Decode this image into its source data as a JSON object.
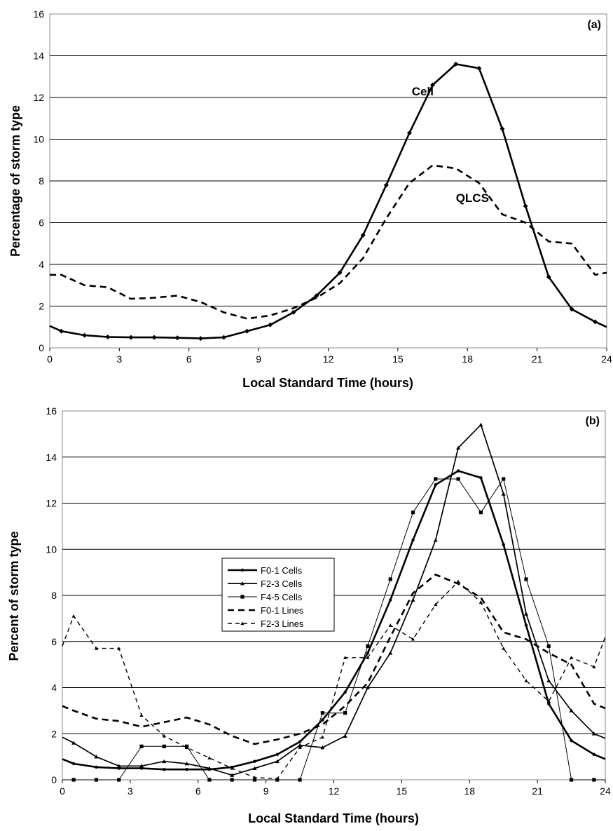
{
  "chart_data": [
    {
      "type": "line",
      "panel_label": "(a)",
      "title": "",
      "xlabel": "Local Standard Time (hours)",
      "ylabel": "Percentage of storm type",
      "xlim": [
        0,
        24
      ],
      "ylim": [
        0,
        16
      ],
      "xticks": [
        0,
        3,
        6,
        9,
        12,
        15,
        18,
        21,
        24
      ],
      "yticks": [
        0,
        2,
        4,
        6,
        8,
        10,
        12,
        14,
        16
      ],
      "grid": "horizontal",
      "legend": "none",
      "annotations": [
        {
          "text": "Cell",
          "x": 15.6,
          "y": 12.1
        },
        {
          "text": "QLCS",
          "x": 17.5,
          "y": 7.0
        }
      ],
      "series": [
        {
          "name": "Cell",
          "style": "solid-diamond",
          "x": [
            0,
            0.5,
            1.5,
            2.5,
            3.5,
            4.5,
            5.5,
            6.5,
            7.5,
            8.5,
            9.5,
            10.5,
            11.5,
            12.5,
            13.5,
            14.5,
            15.5,
            16.5,
            17.5,
            18.5,
            19.5,
            20.5,
            21.5,
            22.5,
            23.5,
            24
          ],
          "y": [
            1.05,
            0.8,
            0.6,
            0.52,
            0.5,
            0.5,
            0.48,
            0.45,
            0.5,
            0.8,
            1.1,
            1.7,
            2.5,
            3.6,
            5.4,
            7.8,
            10.3,
            12.6,
            13.6,
            13.4,
            10.5,
            6.8,
            3.4,
            1.85,
            1.25,
            1.0
          ]
        },
        {
          "name": "QLCS",
          "style": "dashed",
          "x": [
            0,
            0.5,
            1.5,
            2.5,
            3.5,
            4.5,
            5.5,
            6.5,
            7.5,
            8.5,
            9.5,
            10.5,
            11.5,
            12.5,
            13.5,
            14.5,
            15.5,
            16.5,
            17.5,
            18.5,
            19.5,
            20.5,
            21.5,
            22.5,
            23.5,
            24
          ],
          "y": [
            3.5,
            3.5,
            3.0,
            2.9,
            2.35,
            2.4,
            2.5,
            2.2,
            1.7,
            1.4,
            1.55,
            1.9,
            2.4,
            3.1,
            4.3,
            6.2,
            7.9,
            8.75,
            8.6,
            7.9,
            6.4,
            6.0,
            5.1,
            5.0,
            3.5,
            3.6
          ]
        }
      ]
    },
    {
      "type": "line",
      "panel_label": "(b)",
      "title": "",
      "xlabel": "Local Standard Time (hours)",
      "ylabel": "Percent of storm type",
      "xlim": [
        0,
        24
      ],
      "ylim": [
        0,
        16
      ],
      "xticks": [
        0,
        3,
        6,
        9,
        12,
        15,
        18,
        21,
        24
      ],
      "yticks": [
        0,
        2,
        4,
        6,
        8,
        10,
        12,
        14,
        16
      ],
      "grid": "horizontal",
      "legend": "center-left",
      "series": [
        {
          "name": "F0-1 Cells",
          "style": "solid-thick-dot",
          "x": [
            0,
            0.5,
            1.5,
            2.5,
            3.5,
            4.5,
            5.5,
            6.5,
            7.5,
            8.5,
            9.5,
            10.5,
            11.5,
            12.5,
            13.5,
            14.5,
            15.5,
            16.5,
            17.5,
            18.5,
            19.5,
            20.5,
            21.5,
            22.5,
            23.5,
            24
          ],
          "y": [
            0.9,
            0.7,
            0.55,
            0.5,
            0.5,
            0.45,
            0.45,
            0.45,
            0.55,
            0.8,
            1.1,
            1.65,
            2.6,
            3.8,
            5.5,
            7.8,
            10.4,
            12.8,
            13.4,
            13.1,
            10.2,
            6.7,
            3.3,
            1.7,
            1.1,
            0.9
          ]
        },
        {
          "name": "F2-3 Cells",
          "style": "solid-triangle",
          "x": [
            0,
            0.5,
            1.5,
            2.5,
            3.5,
            4.5,
            5.5,
            6.5,
            7.5,
            8.5,
            9.5,
            10.5,
            11.5,
            12.5,
            13.5,
            14.5,
            15.5,
            16.5,
            17.5,
            18.5,
            19.5,
            20.5,
            21.5,
            22.5,
            23.5,
            24
          ],
          "y": [
            1.85,
            1.6,
            1.0,
            0.6,
            0.6,
            0.8,
            0.7,
            0.5,
            0.2,
            0.5,
            0.8,
            1.5,
            1.4,
            1.9,
            4.0,
            5.5,
            7.8,
            10.4,
            14.4,
            15.4,
            12.4,
            7.2,
            4.3,
            3.0,
            2.0,
            1.8
          ]
        },
        {
          "name": "F4-5 Cells",
          "style": "solid-thin-square",
          "x": [
            0,
            0.5,
            1.5,
            2.5,
            3.5,
            4.5,
            5.5,
            6.5,
            7.5,
            8.5,
            9.5,
            10.5,
            11.5,
            12.5,
            13.5,
            14.5,
            15.5,
            16.5,
            17.5,
            18.5,
            19.5,
            20.5,
            21.5,
            22.5,
            23.5,
            24
          ],
          "y": [
            0,
            0,
            0,
            0,
            1.45,
            1.45,
            1.45,
            0,
            0,
            0,
            0,
            0,
            2.9,
            2.9,
            5.8,
            8.7,
            11.6,
            13.05,
            13.05,
            11.6,
            13.05,
            8.7,
            5.8,
            0,
            0,
            0
          ]
        },
        {
          "name": "F0-1 Lines",
          "style": "dashed-thick",
          "x": [
            0,
            0.5,
            1.5,
            2.5,
            3.5,
            4.5,
            5.5,
            6.5,
            7.5,
            8.5,
            9.5,
            10.5,
            11.5,
            12.5,
            13.5,
            14.5,
            15.5,
            16.5,
            17.5,
            18.5,
            19.5,
            20.5,
            21.5,
            22.5,
            23.5,
            24
          ],
          "y": [
            3.2,
            3.0,
            2.65,
            2.55,
            2.3,
            2.5,
            2.7,
            2.4,
            1.9,
            1.55,
            1.75,
            2.0,
            2.4,
            3.2,
            4.2,
            6.2,
            8.1,
            8.9,
            8.5,
            7.9,
            6.4,
            6.1,
            5.5,
            5.0,
            3.3,
            3.1
          ]
        },
        {
          "name": "F2-3 Lines",
          "style": "dashed-triangle",
          "x": [
            0,
            0.5,
            1.5,
            2.5,
            3.5,
            4.5,
            5.5,
            6.5,
            7.5,
            8.5,
            9.5,
            10.5,
            11.5,
            12.5,
            13.5,
            14.5,
            15.5,
            16.5,
            17.5,
            18.5,
            19.5,
            20.5,
            21.5,
            22.5,
            23.5,
            24
          ],
          "y": [
            5.8,
            7.1,
            5.7,
            5.7,
            2.8,
            1.9,
            1.4,
            0.95,
            0.5,
            0.1,
            0.05,
            1.4,
            1.85,
            5.3,
            5.3,
            6.7,
            6.1,
            7.6,
            8.6,
            7.7,
            5.7,
            4.3,
            3.4,
            5.3,
            4.9,
            6.2
          ]
        }
      ]
    }
  ]
}
